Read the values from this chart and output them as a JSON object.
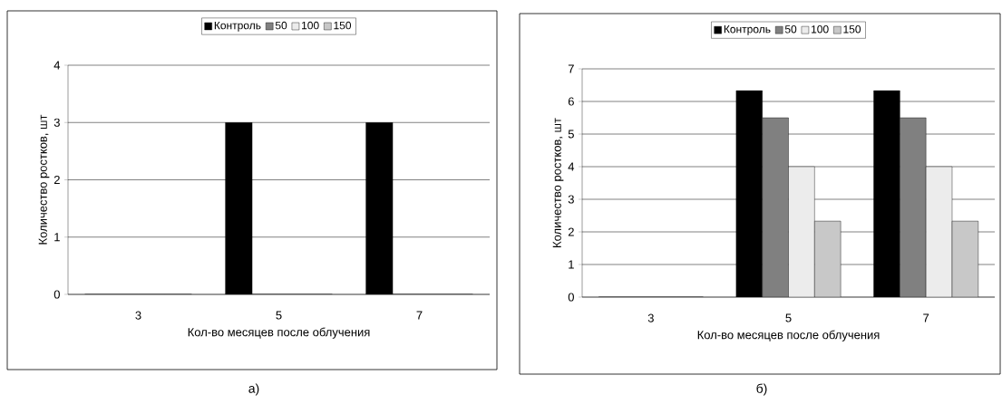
{
  "chart_data": [
    {
      "type": "bar",
      "categories": [
        "3",
        "5",
        "7"
      ],
      "xlabel": "Кол-во месяцев после облучения",
      "ylabel": "Количество ростков, шт",
      "ylim": [
        0,
        4
      ],
      "yticks": [
        0,
        1,
        2,
        3,
        4
      ],
      "grid": "y",
      "legend": "top",
      "series": [
        {
          "name": "Контроль",
          "color": "#000000",
          "values": [
            0,
            3,
            3
          ]
        },
        {
          "name": "50",
          "color": "#808080",
          "values": [
            0,
            0,
            0
          ]
        },
        {
          "name": "100",
          "color": "#ececec",
          "values": [
            0,
            0,
            0
          ]
        },
        {
          "name": "150",
          "color": "#c8c8c8",
          "values": [
            0,
            0,
            0
          ]
        }
      ],
      "annotations": [
        "а)"
      ]
    },
    {
      "type": "bar",
      "categories": [
        "3",
        "5",
        "7"
      ],
      "xlabel": "Кол-во месяцев после облучения",
      "ylabel": "Количество ростков, шт",
      "ylim": [
        0,
        7
      ],
      "yticks": [
        0,
        1,
        2,
        3,
        4,
        5,
        6,
        7
      ],
      "grid": "y",
      "legend": "top",
      "series": [
        {
          "name": "Контроль",
          "color": "#000000",
          "values": [
            0,
            6.33,
            6.33
          ]
        },
        {
          "name": "50",
          "color": "#808080",
          "values": [
            0,
            5.5,
            5.5
          ]
        },
        {
          "name": "100",
          "color": "#ececec",
          "values": [
            0,
            4,
            4
          ]
        },
        {
          "name": "150",
          "color": "#c8c8c8",
          "values": [
            0,
            2.33,
            2.33
          ]
        }
      ],
      "annotations": [
        "б)"
      ]
    }
  ]
}
